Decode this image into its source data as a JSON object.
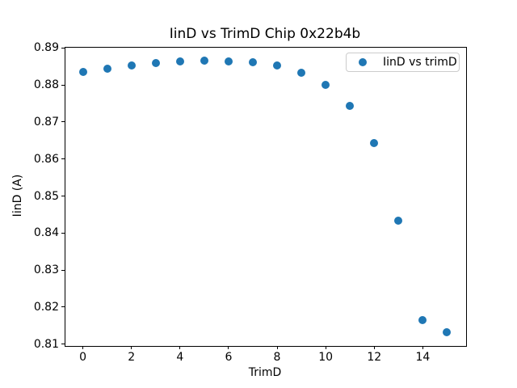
{
  "chart_data": {
    "type": "scatter",
    "title": "IinD vs TrimD Chip 0x22b4b",
    "xlabel": "TrimD",
    "ylabel": "IinD (A)",
    "series": [
      {
        "name": "IinD vs trimD",
        "color": "#1f77b4",
        "x": [
          0,
          1,
          2,
          3,
          4,
          5,
          6,
          7,
          8,
          9,
          10,
          11,
          12,
          13,
          14,
          15
        ],
        "y": [
          0.8835,
          0.8843,
          0.8852,
          0.8859,
          0.8864,
          0.8866,
          0.8863,
          0.8862,
          0.8853,
          0.8834,
          0.8801,
          0.8744,
          0.8642,
          0.8433,
          0.8165,
          0.8133
        ]
      }
    ],
    "xlim": [
      -0.75,
      15.75
    ],
    "ylim": [
      0.8097,
      0.8903
    ],
    "xticks": [
      0,
      2,
      4,
      6,
      8,
      10,
      12,
      14
    ],
    "yticks": [
      0.81,
      0.82,
      0.83,
      0.84,
      0.85,
      0.86,
      0.87,
      0.88,
      0.89
    ],
    "ytick_decimals": 2,
    "grid": false,
    "legend": {
      "position": "upper right",
      "entries": [
        "IinD vs trimD"
      ]
    },
    "colors": {
      "marker": "#1f77b4",
      "spine": "#000000",
      "background": "#ffffff",
      "legend_border": "#cccccc"
    }
  }
}
